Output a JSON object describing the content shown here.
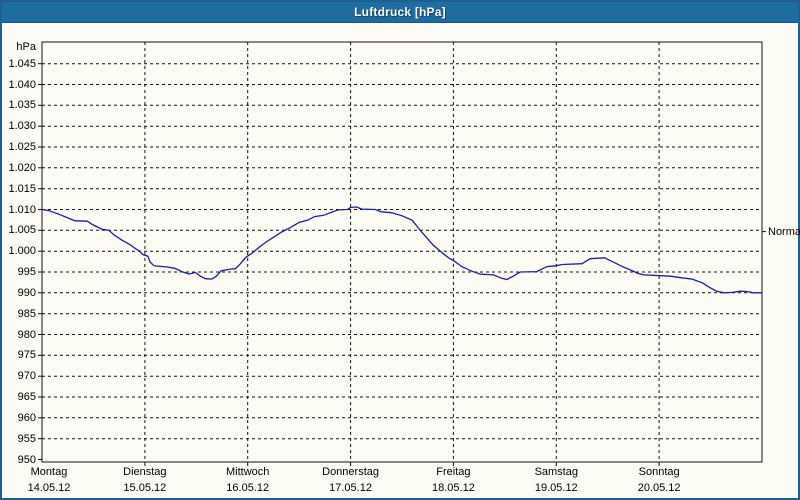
{
  "window": {
    "title": "Luftdruck [hPa]"
  },
  "colors": {
    "titlebar": "#1e6da0",
    "frame_border": "#1b5f93",
    "background": "#fcfcf4",
    "grid": "#111111",
    "line": "#1c1caa",
    "text": "#000000",
    "title_text": "#ffffff"
  },
  "chart_data": {
    "type": "line",
    "title": "Luftdruck [hPa]",
    "grid": "dashed",
    "legend_position": "none",
    "y_axis": {
      "unit_label": "hPa",
      "tick_min": 950,
      "tick_max": 1045,
      "tick_step": 5,
      "axis_range": [
        949.4,
        1050.2
      ],
      "ticks": [
        {
          "value": 1045,
          "label": "1.045"
        },
        {
          "value": 1040,
          "label": "1.040"
        },
        {
          "value": 1035,
          "label": "1.035"
        },
        {
          "value": 1030,
          "label": "1.030"
        },
        {
          "value": 1025,
          "label": "1.025"
        },
        {
          "value": 1020,
          "label": "1.020"
        },
        {
          "value": 1015,
          "label": "1.015"
        },
        {
          "value": 1010,
          "label": "1.010"
        },
        {
          "value": 1005,
          "label": "1.005"
        },
        {
          "value": 1000,
          "label": "1.000"
        },
        {
          "value": 995,
          "label": "995"
        },
        {
          "value": 990,
          "label": "990"
        },
        {
          "value": 985,
          "label": "985"
        },
        {
          "value": 980,
          "label": "980"
        },
        {
          "value": 975,
          "label": "975"
        },
        {
          "value": 970,
          "label": "970"
        },
        {
          "value": 965,
          "label": "965"
        },
        {
          "value": 960,
          "label": "960"
        },
        {
          "value": 955,
          "label": "955"
        },
        {
          "value": 950,
          "label": "950"
        }
      ]
    },
    "x_axis": {
      "range_days": [
        0,
        7
      ],
      "days": [
        {
          "name": "Montag",
          "date": "14.05.12"
        },
        {
          "name": "Dienstag",
          "date": "15.05.12"
        },
        {
          "name": "Mittwoch",
          "date": "16.05.12"
        },
        {
          "name": "Donnerstag",
          "date": "17.05.12"
        },
        {
          "name": "Freitag",
          "date": "18.05.12"
        },
        {
          "name": "Samstag",
          "date": "19.05.12"
        },
        {
          "name": "Sonntag",
          "date": "20.05.12"
        }
      ]
    },
    "normal_marker": {
      "label": "Normal",
      "value_hpa": 1004.7
    },
    "series": [
      {
        "name": "Luftdruck",
        "color": "#1c1caa",
        "points": [
          [
            0.0,
            1010.0
          ],
          [
            0.07,
            1009.7
          ],
          [
            0.15,
            1009.0
          ],
          [
            0.19,
            1008.6
          ],
          [
            0.24,
            1008.1
          ],
          [
            0.32,
            1007.3
          ],
          [
            0.44,
            1007.2
          ],
          [
            0.49,
            1006.4
          ],
          [
            0.58,
            1005.3
          ],
          [
            0.65,
            1005.0
          ],
          [
            0.7,
            1003.9
          ],
          [
            0.78,
            1002.6
          ],
          [
            0.86,
            1001.5
          ],
          [
            0.91,
            1000.6
          ],
          [
            0.95,
            1000.0
          ],
          [
            0.98,
            999.2
          ],
          [
            1.03,
            998.8
          ],
          [
            1.05,
            997.4
          ],
          [
            1.09,
            996.5
          ],
          [
            1.22,
            996.2
          ],
          [
            1.29,
            995.9
          ],
          [
            1.36,
            995.1
          ],
          [
            1.43,
            994.5
          ],
          [
            1.49,
            994.9
          ],
          [
            1.54,
            994.0
          ],
          [
            1.59,
            993.4
          ],
          [
            1.65,
            993.3
          ],
          [
            1.69,
            993.9
          ],
          [
            1.74,
            995.3
          ],
          [
            1.83,
            995.7
          ],
          [
            1.88,
            995.8
          ],
          [
            1.93,
            997.0
          ],
          [
            1.98,
            998.5
          ],
          [
            2.04,
            999.5
          ],
          [
            2.11,
            1000.9
          ],
          [
            2.18,
            1002.2
          ],
          [
            2.26,
            1003.5
          ],
          [
            2.33,
            1004.6
          ],
          [
            2.41,
            1005.6
          ],
          [
            2.5,
            1006.9
          ],
          [
            2.58,
            1007.4
          ],
          [
            2.65,
            1008.3
          ],
          [
            2.74,
            1008.6
          ],
          [
            2.82,
            1009.4
          ],
          [
            2.88,
            1009.9
          ],
          [
            2.97,
            1010.0
          ],
          [
            3.0,
            1010.5
          ],
          [
            3.06,
            1010.6
          ],
          [
            3.11,
            1010.1
          ],
          [
            3.24,
            1010.0
          ],
          [
            3.29,
            1009.5
          ],
          [
            3.4,
            1009.2
          ],
          [
            3.5,
            1008.5
          ],
          [
            3.6,
            1007.4
          ],
          [
            3.67,
            1005.2
          ],
          [
            3.73,
            1003.5
          ],
          [
            3.8,
            1001.5
          ],
          [
            3.89,
            999.6
          ],
          [
            3.96,
            998.3
          ],
          [
            4.01,
            997.6
          ],
          [
            4.08,
            996.3
          ],
          [
            4.18,
            995.2
          ],
          [
            4.26,
            994.5
          ],
          [
            4.39,
            994.3
          ],
          [
            4.47,
            993.5
          ],
          [
            4.52,
            993.2
          ],
          [
            4.59,
            994.1
          ],
          [
            4.65,
            995.0
          ],
          [
            4.81,
            995.1
          ],
          [
            4.91,
            996.3
          ],
          [
            4.99,
            996.5
          ],
          [
            5.06,
            996.8
          ],
          [
            5.25,
            997.0
          ],
          [
            5.33,
            998.2
          ],
          [
            5.47,
            998.4
          ],
          [
            5.57,
            997.2
          ],
          [
            5.66,
            996.1
          ],
          [
            5.72,
            995.5
          ],
          [
            5.79,
            994.7
          ],
          [
            5.85,
            994.3
          ],
          [
            6.11,
            994.0
          ],
          [
            6.22,
            993.6
          ],
          [
            6.32,
            993.3
          ],
          [
            6.42,
            992.4
          ],
          [
            6.49,
            991.3
          ],
          [
            6.56,
            990.4
          ],
          [
            6.63,
            990.0
          ],
          [
            6.71,
            990.1
          ],
          [
            6.79,
            990.4
          ],
          [
            6.86,
            990.3
          ],
          [
            6.92,
            990.0
          ],
          [
            7.0,
            990.0
          ]
        ]
      }
    ]
  }
}
